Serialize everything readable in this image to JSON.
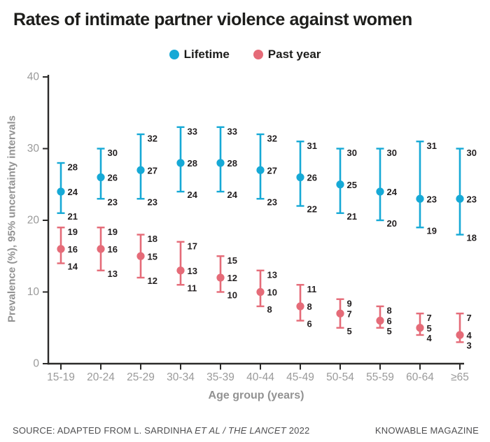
{
  "title": "Rates of intimate partner violence against women",
  "legend": {
    "items": [
      {
        "label": "Lifetime",
        "color": "#16a9d6"
      },
      {
        "label": "Past year",
        "color": "#e56b78"
      }
    ]
  },
  "chart_data": {
    "type": "scatter",
    "subtype": "point-range-errorbars",
    "title": "Rates of intimate partner violence against women",
    "xlabel": "Age group (years)",
    "ylabel": "Prevalence (%), 95% uncertainty intervals",
    "ylim": [
      0,
      40
    ],
    "yticks": [
      0,
      10,
      20,
      30,
      40
    ],
    "grid": false,
    "legend_position": "top",
    "point_labels": true,
    "categories": [
      "15-19",
      "20-24",
      "25-29",
      "30-34",
      "35-39",
      "40-44",
      "45-49",
      "50-54",
      "55-59",
      "60-64",
      "≥65"
    ],
    "series": [
      {
        "name": "Lifetime",
        "color": "#16a9d6",
        "values": [
          24,
          26,
          27,
          28,
          28,
          27,
          26,
          25,
          24,
          23,
          23
        ],
        "lower": [
          21,
          23,
          23,
          24,
          24,
          23,
          22,
          21,
          20,
          19,
          18
        ],
        "upper": [
          28,
          30,
          32,
          33,
          33,
          32,
          31,
          30,
          30,
          31,
          30
        ]
      },
      {
        "name": "Past year",
        "color": "#e56b78",
        "values": [
          16,
          16,
          15,
          13,
          12,
          10,
          8,
          7,
          6,
          5,
          4
        ],
        "lower": [
          14,
          13,
          12,
          11,
          10,
          8,
          6,
          5,
          5,
          4,
          3
        ],
        "upper": [
          19,
          19,
          18,
          17,
          15,
          13,
          11,
          9,
          8,
          7,
          7
        ]
      }
    ]
  },
  "footer": {
    "source_prefix": "SOURCE: ADAPTED FROM L. SARDINHA ",
    "source_italic": "ET AL / THE LANCET",
    "source_suffix": " 2022",
    "credit": "KNOWABLE MAGAZINE"
  },
  "colors": {
    "background": "#ffffff",
    "title": "#1d1d1b",
    "axis": "#2b2a29",
    "tick_label": "#9a9a9a",
    "axis_title": "#929292",
    "value_label": "#231f20",
    "source": "#4f4f51"
  }
}
